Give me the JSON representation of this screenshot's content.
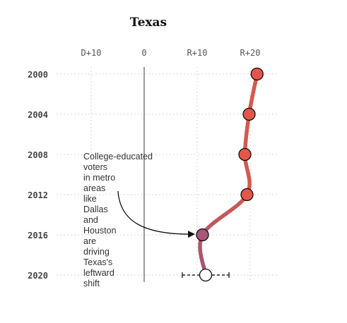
{
  "chart_data": {
    "type": "line",
    "title": "Texas",
    "x_tick_labels": [
      "D+10",
      "0",
      "R+10",
      "R+20"
    ],
    "x_tick_values": [
      -10,
      0,
      10,
      20
    ],
    "xlim": [
      -15,
      24
    ],
    "y_tick_labels": [
      "2000",
      "2004",
      "2008",
      "2012",
      "2016",
      "2020"
    ],
    "series": [
      {
        "years": [
          "2000",
          "2004",
          "2008",
          "2012",
          "2016",
          "2020"
        ],
        "margin": [
          21.3,
          19.8,
          19.0,
          19.4,
          11.0,
          11.6
        ]
      }
    ],
    "interval_2020": [
      7.2,
      16.0
    ],
    "annotation": {
      "lines": [
        "College-educated",
        "voters",
        "in metro",
        "areas",
        "like",
        "Dallas",
        "and",
        "Houston",
        "are",
        "driving",
        "Texas's",
        "leftward",
        "shift"
      ],
      "points_to": "2016"
    },
    "colors": {
      "red": "#e3574a",
      "purple": "#a8557a",
      "line_start": "#d9574a",
      "line_end": "#9e5478",
      "zero_line": "#666666"
    }
  }
}
